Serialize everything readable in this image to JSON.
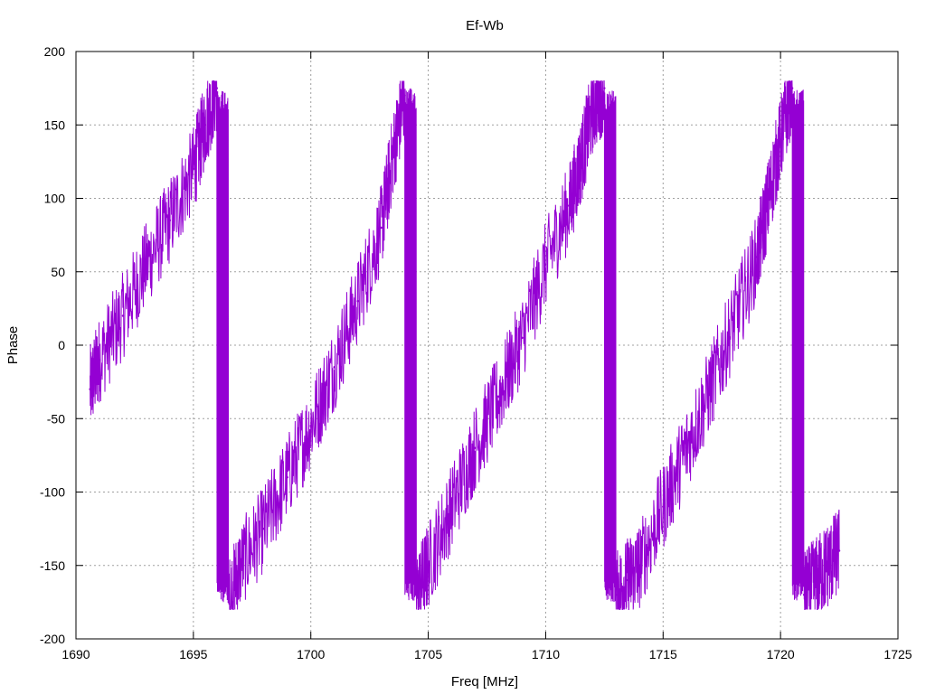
{
  "chart_data": {
    "type": "line",
    "title": "Ef-Wb",
    "xlabel": "Freq [MHz]",
    "ylabel": "Phase",
    "xlim": [
      1690,
      1725
    ],
    "ylim": [
      -200,
      200
    ],
    "x_ticks": [
      1690,
      1695,
      1700,
      1705,
      1710,
      1715,
      1720,
      1725
    ],
    "y_ticks": [
      -200,
      -150,
      -100,
      -50,
      0,
      50,
      100,
      150,
      200
    ],
    "grid": true,
    "legend": "none",
    "series": [
      {
        "color": "#9400d3",
        "x": [
          1690.6,
          1691.0,
          1692.0,
          1693.0,
          1694.0,
          1695.0,
          1695.5,
          1696.0,
          1696.5,
          1697.0,
          1698.0,
          1699.0,
          1700.0,
          1701.0,
          1702.0,
          1703.0,
          1703.5,
          1704.0,
          1704.5,
          1705.0,
          1706.0,
          1707.0,
          1708.0,
          1709.0,
          1710.0,
          1711.0,
          1711.5,
          1712.0,
          1712.5,
          1713.0,
          1713.5,
          1714.0,
          1715.0,
          1716.0,
          1717.0,
          1718.0,
          1719.0,
          1719.5,
          1720.0,
          1720.5,
          1721.0,
          1721.5,
          1722.0,
          1722.5
        ],
        "values": [
          -30,
          -10,
          20,
          55,
          85,
          120,
          150,
          175,
          -175,
          -150,
          -125,
          -90,
          -55,
          -15,
          30,
          80,
          130,
          170,
          -170,
          -150,
          -110,
          -70,
          -35,
          5,
          55,
          95,
          125,
          160,
          175,
          -170,
          -160,
          -150,
          -110,
          -70,
          -30,
          15,
          60,
          100,
          140,
          175,
          -170,
          -160,
          -150,
          -140
        ]
      }
    ]
  }
}
